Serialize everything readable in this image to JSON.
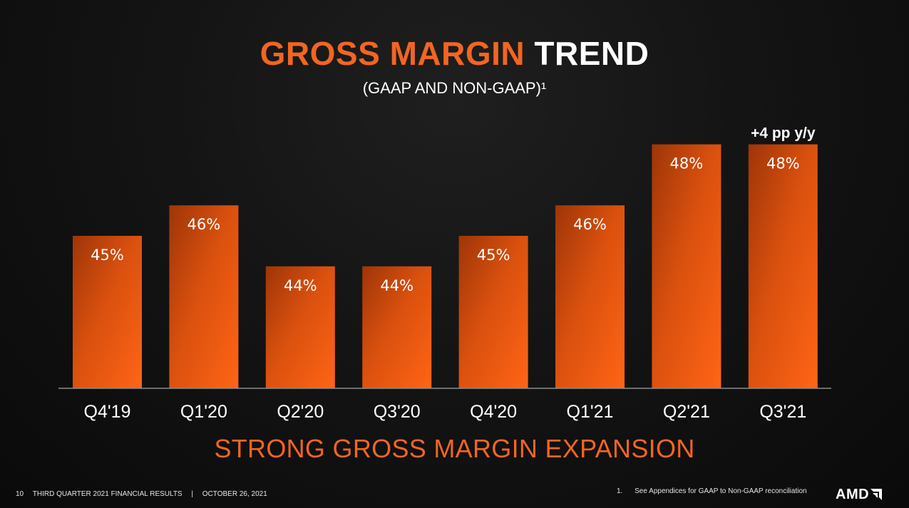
{
  "title": {
    "accent": "GROSS MARGIN",
    "plain": "TREND"
  },
  "subtitle": "(GAAP AND NON-GAAP)¹",
  "chart_data": {
    "type": "bar",
    "categories": [
      "Q4'19",
      "Q1'20",
      "Q2'20",
      "Q3'20",
      "Q4'20",
      "Q1'21",
      "Q2'21",
      "Q3'21"
    ],
    "values": [
      45,
      46,
      44,
      44,
      45,
      46,
      48,
      48
    ],
    "value_labels": [
      "45%",
      "46%",
      "44%",
      "44%",
      "45%",
      "46%",
      "48%",
      "48%"
    ],
    "annotation": {
      "text": "+4 pp y/y",
      "category": "Q3'21"
    },
    "ylim": [
      40,
      48
    ],
    "grid": false,
    "legend": "none",
    "bar_color": "#f26522"
  },
  "tagline": "STRONG GROSS MARGIN EXPANSION",
  "footer": {
    "page_number": "10",
    "report_title": "THIRD QUARTER 2021 FINANCIAL RESULTS",
    "separator": "|",
    "date": "OCTOBER 26, 2021"
  },
  "footnote": {
    "number": "1.",
    "text": "See Appendices for GAAP to Non-GAAP reconciliation"
  },
  "logo": {
    "text": "AMD"
  },
  "colors": {
    "accent": "#f26522",
    "background": "#141414",
    "text": "#ffffff"
  }
}
